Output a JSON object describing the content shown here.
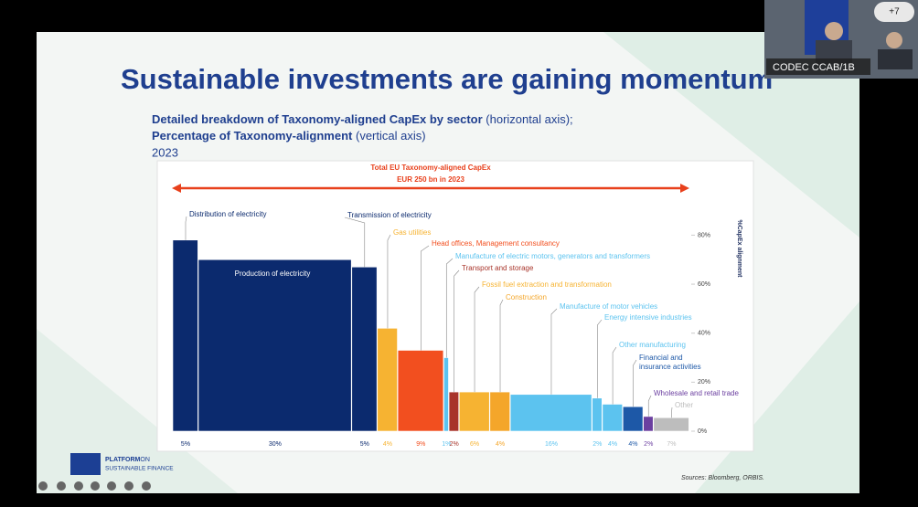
{
  "slide": {
    "title": "Sustainable investments are gaining momentum",
    "subtitle_bold_1": "Detailed breakdown of Taxonomy-aligned CapEx by sector",
    "subtitle_normal_1": "(horizontal axis);",
    "subtitle_bold_2": "Percentage of Taxonomy-alignment",
    "subtitle_normal_2": "(vertical axis)",
    "year": "2023",
    "logo_line_1": "PLATFORM",
    "logo_line_1b": "ON",
    "logo_line_2": "SUSTAINABLE FINANCE",
    "source": "Sources: Bloomberg, ORBIS."
  },
  "video": {
    "participant": "CODEC CCAB/1B",
    "others": "+7"
  },
  "chart_data": {
    "type": "marimekko",
    "annotation_1": "Total EU Taxonomy-aligned CapEx",
    "annotation_2": "EUR 250 bn in 2023",
    "y_label": "%CapEx alignment",
    "categories": [
      "Distribution of electricity",
      "Production of electricity",
      "Transmission of electricity",
      "Gas utilities",
      "Head offices, Management consultancy",
      "Manufacture of electric motors, generators and transformers",
      "Transport and storage",
      "Fossil fuel extraction and transformation",
      "Construction",
      "Manufacture of motor vehicles",
      "Energy intensive industries",
      "Other manufacturing",
      "Financial and insurance activities",
      "Wholesale and retail trade",
      "Other"
    ],
    "values": [
      78,
      70,
      67,
      42,
      33,
      30,
      16,
      16,
      16,
      15,
      13.5,
      11,
      10,
      6,
      5.5
    ],
    "widths": [
      5,
      30,
      5,
      4,
      9,
      1,
      2,
      6,
      4,
      16,
      2,
      4,
      4,
      2,
      7
    ],
    "width_labels": [
      "5%",
      "30%",
      "5%",
      "4%",
      "9%",
      "1%",
      "2%",
      "6%",
      "4%",
      "16%",
      "2%",
      "4%",
      "4%",
      "2%",
      "7%"
    ],
    "colors": [
      "#0b2a6e",
      "#0b2a6e",
      "#0b2a6e",
      "#f6b332",
      "#f24f1f",
      "#5cc3ef",
      "#a8342a",
      "#f6b332",
      "#f4a62a",
      "#5cc3ef",
      "#5cc3ef",
      "#5cc3ef",
      "#1d58a7",
      "#6b3fa0",
      "#bdbdbd"
    ],
    "xlim": [
      0,
      101
    ],
    "ylim": [
      0,
      85
    ],
    "yticks": [
      {
        "value": 0,
        "label": "0%"
      },
      {
        "value": 20,
        "label": "20%"
      },
      {
        "value": 40,
        "label": "40%"
      },
      {
        "value": 60,
        "label": "60%"
      },
      {
        "value": 80,
        "label": "80%"
      }
    ]
  }
}
